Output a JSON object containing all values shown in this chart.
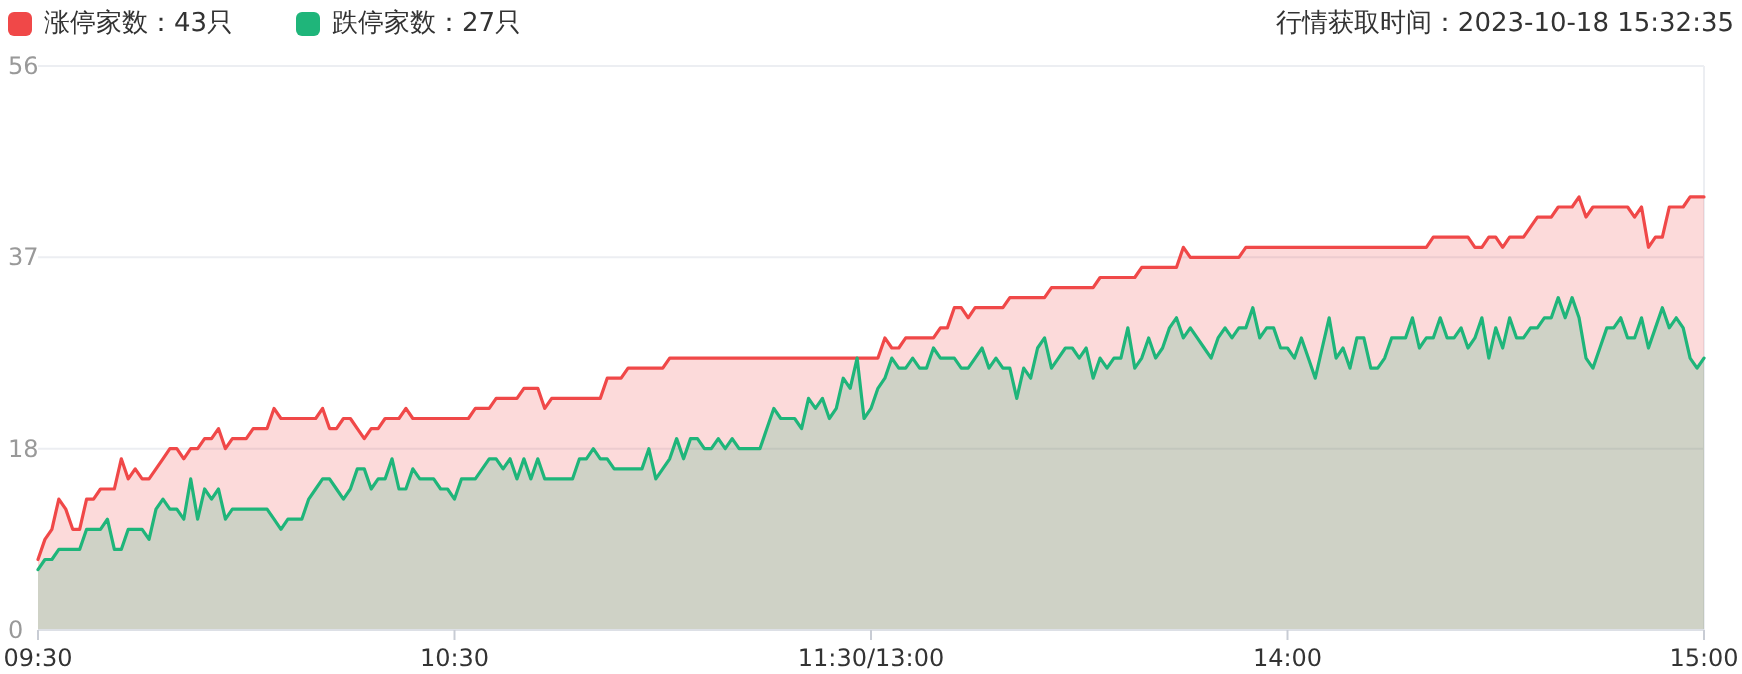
{
  "chart_data": {
    "type": "area",
    "annotations": [
      "行情获取时间：2023-10-18 15:32:35"
    ],
    "categories": [
      "09:30",
      null,
      null,
      null,
      null,
      null,
      null,
      null,
      null,
      null,
      null,
      null,
      null,
      null,
      null,
      null,
      null,
      null,
      null,
      null,
      null,
      null,
      null,
      null,
      null,
      null,
      null,
      null,
      null,
      null,
      null,
      null,
      null,
      null,
      null,
      null,
      null,
      null,
      null,
      null,
      null,
      null,
      null,
      null,
      null,
      null,
      null,
      null,
      null,
      null,
      null,
      null,
      null,
      null,
      null,
      null,
      null,
      null,
      null,
      null,
      "10:30",
      null,
      null,
      null,
      null,
      null,
      null,
      null,
      null,
      null,
      null,
      null,
      null,
      null,
      null,
      null,
      null,
      null,
      null,
      null,
      null,
      null,
      null,
      null,
      null,
      null,
      null,
      null,
      null,
      null,
      null,
      null,
      null,
      null,
      null,
      null,
      null,
      null,
      null,
      null,
      null,
      null,
      null,
      null,
      null,
      null,
      null,
      null,
      null,
      null,
      null,
      null,
      null,
      null,
      null,
      null,
      null,
      null,
      null,
      null,
      "11:30/13:00",
      null,
      null,
      null,
      null,
      null,
      null,
      null,
      null,
      null,
      null,
      null,
      null,
      null,
      null,
      null,
      null,
      null,
      null,
      null,
      null,
      null,
      null,
      null,
      null,
      null,
      null,
      null,
      null,
      null,
      null,
      null,
      null,
      null,
      null,
      null,
      null,
      null,
      null,
      null,
      null,
      null,
      null,
      null,
      null,
      null,
      null,
      null,
      null,
      null,
      null,
      null,
      null,
      null,
      null,
      null,
      null,
      null,
      null,
      null,
      "14:00",
      null,
      null,
      null,
      null,
      null,
      null,
      null,
      null,
      null,
      null,
      null,
      null,
      null,
      null,
      null,
      null,
      null,
      null,
      null,
      null,
      null,
      null,
      null,
      null,
      null,
      null,
      null,
      null,
      null,
      null,
      null,
      null,
      null,
      null,
      null,
      null,
      null,
      null,
      null,
      null,
      null,
      null,
      null,
      null,
      null,
      null,
      null,
      null,
      null,
      null,
      null,
      null,
      null,
      null,
      null,
      null,
      null,
      null,
      null,
      "15:00"
    ],
    "ylim": [
      0,
      56
    ],
    "yticks": [
      0,
      18,
      37,
      56
    ],
    "grid": "y",
    "legend": "top left",
    "series": [
      {
        "name": "涨停家数：43只",
        "color": "#f04848",
        "values": [
          7,
          9,
          10,
          13,
          12,
          10,
          10,
          13,
          13,
          14,
          14,
          14,
          17,
          15,
          16,
          15,
          15,
          16,
          17,
          18,
          18,
          17,
          18,
          18,
          19,
          19,
          20,
          18,
          19,
          19,
          19,
          20,
          20,
          20,
          22,
          21,
          21,
          21,
          21,
          21,
          21,
          22,
          20,
          20,
          21,
          21,
          20,
          19,
          20,
          20,
          21,
          21,
          21,
          22,
          21,
          21,
          21,
          21,
          21,
          21,
          21,
          21,
          21,
          22,
          22,
          22,
          23,
          23,
          23,
          23,
          24,
          24,
          24,
          22,
          23,
          23,
          23,
          23,
          23,
          23,
          23,
          23,
          25,
          25,
          25,
          26,
          26,
          26,
          26,
          26,
          26,
          27,
          27,
          27,
          27,
          27,
          27,
          27,
          27,
          27,
          27,
          27,
          27,
          27,
          27,
          27,
          27,
          27,
          27,
          27,
          27,
          27,
          27,
          27,
          27,
          27,
          27,
          27,
          27,
          27,
          27,
          27,
          29,
          28,
          28,
          29,
          29,
          29,
          29,
          29,
          30,
          30,
          32,
          32,
          31,
          32,
          32,
          32,
          32,
          32,
          33,
          33,
          33,
          33,
          33,
          33,
          34,
          34,
          34,
          34,
          34,
          34,
          34,
          35,
          35,
          35,
          35,
          35,
          35,
          36,
          36,
          36,
          36,
          36,
          36,
          38,
          37,
          37,
          37,
          37,
          37,
          37,
          37,
          37,
          38,
          38,
          38,
          38,
          38,
          38,
          38,
          38,
          38,
          38,
          38,
          38,
          38,
          38,
          38,
          38,
          38,
          38,
          38,
          38,
          38,
          38,
          38,
          38,
          38,
          38,
          38,
          39,
          39,
          39,
          39,
          39,
          39,
          38,
          38,
          39,
          39,
          38,
          39,
          39,
          39,
          40,
          41,
          41,
          41,
          42,
          42,
          42,
          43,
          41,
          42,
          42,
          42,
          42,
          42,
          42,
          41,
          42,
          38,
          39,
          39,
          42,
          42,
          42,
          43,
          43,
          43
        ]
      },
      {
        "name": "跌停家数：27只",
        "color": "#1fb57a",
        "values": [
          6,
          7,
          7,
          8,
          8,
          8,
          8,
          10,
          10,
          10,
          11,
          8,
          8,
          10,
          10,
          10,
          9,
          12,
          13,
          12,
          12,
          11,
          15,
          11,
          14,
          13,
          14,
          11,
          12,
          12,
          12,
          12,
          12,
          12,
          11,
          10,
          11,
          11,
          11,
          13,
          14,
          15,
          15,
          14,
          13,
          14,
          16,
          16,
          14,
          15,
          15,
          17,
          14,
          14,
          16,
          15,
          15,
          15,
          14,
          14,
          13,
          15,
          15,
          15,
          16,
          17,
          17,
          16,
          17,
          15,
          17,
          15,
          17,
          15,
          15,
          15,
          15,
          15,
          17,
          17,
          18,
          17,
          17,
          16,
          16,
          16,
          16,
          16,
          18,
          15,
          16,
          17,
          19,
          17,
          19,
          19,
          18,
          18,
          19,
          18,
          19,
          18,
          18,
          18,
          18,
          20,
          22,
          21,
          21,
          21,
          20,
          23,
          22,
          23,
          21,
          22,
          25,
          24,
          27,
          21,
          22,
          24,
          25,
          27,
          26,
          26,
          27,
          26,
          26,
          28,
          27,
          27,
          27,
          26,
          26,
          27,
          28,
          26,
          27,
          26,
          26,
          23,
          26,
          25,
          28,
          29,
          26,
          27,
          28,
          28,
          27,
          28,
          25,
          27,
          26,
          27,
          27,
          30,
          26,
          27,
          29,
          27,
          28,
          30,
          31,
          29,
          30,
          29,
          28,
          27,
          29,
          30,
          29,
          30,
          30,
          32,
          29,
          30,
          30,
          28,
          28,
          27,
          29,
          27,
          25,
          28,
          31,
          27,
          28,
          26,
          29,
          29,
          26,
          26,
          27,
          29,
          29,
          29,
          31,
          28,
          29,
          29,
          31,
          29,
          29,
          30,
          28,
          29,
          31,
          27,
          30,
          28,
          31,
          29,
          29,
          30,
          30,
          31,
          31,
          33,
          31,
          33,
          31,
          27,
          26,
          28,
          30,
          30,
          31,
          29,
          29,
          31,
          28,
          30,
          32,
          30,
          31,
          30,
          27,
          26,
          27
        ]
      }
    ]
  }
}
